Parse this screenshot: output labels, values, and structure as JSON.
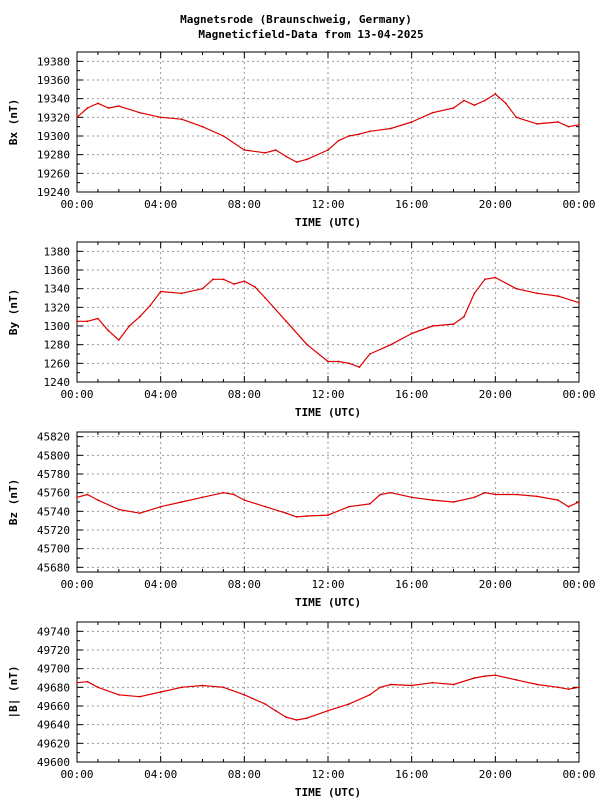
{
  "title_line1": "Magnetsrode (Braunschweig, Germany)",
  "title_line2": "Magneticfield-Data from 13-04-2025",
  "colors": {
    "series": "#dd0000",
    "grid": "#999999",
    "frame": "#000000",
    "background": "#ffffff"
  },
  "chart_data": [
    {
      "type": "line",
      "name": "Bx",
      "ylabel": "Bx (nT)",
      "xlabel": "TIME (UTC)",
      "xlim": [
        0,
        24
      ],
      "ylim": [
        19240,
        19390
      ],
      "yticks": [
        19240,
        19260,
        19280,
        19300,
        19320,
        19340,
        19360,
        19380
      ],
      "xtick_labels": [
        "00:00",
        "04:00",
        "08:00",
        "12:00",
        "16:00",
        "20:00",
        "00:00"
      ],
      "grid": true,
      "x_hours": [
        0,
        0.5,
        1,
        1.5,
        2,
        3,
        4,
        5,
        6,
        7,
        8,
        9,
        9.5,
        10,
        10.5,
        11,
        12,
        12.5,
        13,
        13.5,
        14,
        15,
        16,
        17,
        18,
        18.5,
        19,
        19.5,
        20,
        20.5,
        21,
        22,
        23,
        23.5,
        24
      ],
      "values": [
        19320,
        19330,
        19335,
        19330,
        19332,
        19325,
        19320,
        19318,
        19310,
        19300,
        19285,
        19282,
        19285,
        19278,
        19272,
        19275,
        19285,
        19295,
        19300,
        19302,
        19305,
        19308,
        19315,
        19325,
        19330,
        19338,
        19333,
        19338,
        19345,
        19335,
        19320,
        19313,
        19315,
        19310,
        19312
      ]
    },
    {
      "type": "line",
      "name": "By",
      "ylabel": "By (nT)",
      "xlabel": "TIME (UTC)",
      "xlim": [
        0,
        24
      ],
      "ylim": [
        1240,
        1390
      ],
      "yticks": [
        1240,
        1260,
        1280,
        1300,
        1320,
        1340,
        1360,
        1380
      ],
      "xtick_labels": [
        "00:00",
        "04:00",
        "08:00",
        "12:00",
        "16:00",
        "20:00",
        "00:00"
      ],
      "grid": true,
      "x_hours": [
        0,
        0.5,
        1,
        1.5,
        2,
        2.5,
        3,
        3.5,
        4,
        5,
        6,
        6.5,
        7,
        7.5,
        8,
        8.5,
        9,
        10,
        11,
        12,
        12.5,
        13,
        13.5,
        14,
        15,
        16,
        17,
        18,
        18.5,
        19,
        19.5,
        20,
        21,
        22,
        23,
        24
      ],
      "values": [
        1305,
        1305,
        1308,
        1295,
        1285,
        1300,
        1310,
        1322,
        1337,
        1335,
        1340,
        1350,
        1350,
        1345,
        1348,
        1342,
        1330,
        1305,
        1280,
        1262,
        1262,
        1260,
        1256,
        1270,
        1280,
        1292,
        1300,
        1302,
        1310,
        1335,
        1350,
        1352,
        1340,
        1335,
        1332,
        1325
      ]
    },
    {
      "type": "line",
      "name": "Bz",
      "ylabel": "Bz (nT)",
      "xlabel": "TIME (UTC)",
      "xlim": [
        0,
        24
      ],
      "ylim": [
        45675,
        45825
      ],
      "yticks": [
        45680,
        45700,
        45720,
        45740,
        45760,
        45780,
        45800,
        45820
      ],
      "xtick_labels": [
        "00:00",
        "04:00",
        "08:00",
        "12:00",
        "16:00",
        "20:00",
        "00:00"
      ],
      "grid": true,
      "x_hours": [
        0,
        0.5,
        1,
        2,
        3,
        4,
        5,
        6,
        7,
        7.5,
        8,
        9,
        10,
        10.5,
        11,
        12,
        13,
        14,
        14.5,
        15,
        16,
        17,
        18,
        19,
        19.5,
        20,
        21,
        22,
        23,
        23.5,
        24
      ],
      "values": [
        45755,
        45758,
        45752,
        45742,
        45738,
        45745,
        45750,
        45755,
        45760,
        45758,
        45752,
        45745,
        45738,
        45734,
        45735,
        45736,
        45745,
        45748,
        45758,
        45760,
        45755,
        45752,
        45750,
        45755,
        45760,
        45758,
        45758,
        45756,
        45752,
        45745,
        45750
      ]
    },
    {
      "type": "line",
      "name": "|B|",
      "ylabel": "|B| (nT)",
      "xlabel": "TIME (UTC)",
      "xlim": [
        0,
        24
      ],
      "ylim": [
        49600,
        49750
      ],
      "yticks": [
        49600,
        49620,
        49640,
        49660,
        49680,
        49700,
        49720,
        49740
      ],
      "xtick_labels": [
        "00:00",
        "04:00",
        "08:00",
        "12:00",
        "16:00",
        "20:00",
        "00:00"
      ],
      "grid": true,
      "x_hours": [
        0,
        0.5,
        1,
        2,
        3,
        4,
        5,
        6,
        7,
        8,
        9,
        9.5,
        10,
        10.5,
        11,
        12,
        13,
        14,
        14.5,
        15,
        16,
        17,
        18,
        19,
        19.5,
        20,
        21,
        22,
        23,
        23.5,
        24
      ],
      "values": [
        49685,
        49686,
        49680,
        49672,
        49670,
        49675,
        49680,
        49682,
        49680,
        49672,
        49662,
        49655,
        49648,
        49645,
        49647,
        49655,
        49662,
        49672,
        49680,
        49683,
        49682,
        49685,
        49683,
        49690,
        49692,
        49693,
        49688,
        49683,
        49680,
        49678,
        49680
      ]
    }
  ]
}
